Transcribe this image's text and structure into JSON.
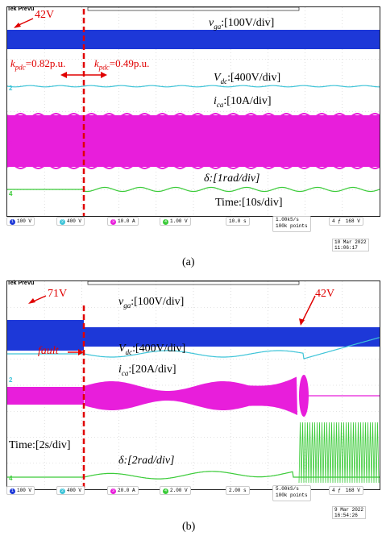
{
  "colors": {
    "ch1": "#1d38d8",
    "ch2": "#3ec4d8",
    "ch3": "#e81edb",
    "ch4": "#3bcb39",
    "red": "#e00000",
    "grid": "#c8c8c8"
  },
  "panel_a": {
    "brand": "Tek PreVu",
    "voltage_note": "42V",
    "kpdc_left": "k",
    "kpdc_left_sub": "pdc",
    "kpdc_left_val": "=0.82p.u.",
    "kpdc_right": "k",
    "kpdc_right_sub": "pdc",
    "kpdc_right_val": "=0.49p.u.",
    "lbl_vga": "v",
    "lbl_vga_sub": "ga",
    "lbl_vga_scale": ":[100V/div]",
    "lbl_vdc": "V",
    "lbl_vdc_sub": "dc",
    "lbl_vdc_scale": ":[400V/div]",
    "lbl_ica": "i",
    "lbl_ica_sub": "ca",
    "lbl_ica_scale": ":[10A/div]",
    "lbl_delta": "δ:[1rad/div]",
    "lbl_time": "Time:[10s/div]",
    "ch1": "100 V",
    "ch2": "400 V",
    "ch3": "10.0 A",
    "ch4": "1.00 V",
    "timebase": "10.0 s",
    "rate": "1.00kS/s",
    "points": "100k points",
    "trigger": "168 V",
    "date": "10 Mar 2022",
    "time": "11:06:17",
    "caption": "(a)"
  },
  "panel_b": {
    "brand": "Tek PreVu",
    "voltage_left": "71V",
    "voltage_right": "42V",
    "fault": "fault",
    "lbl_vga": "v",
    "lbl_vga_sub": "ga",
    "lbl_vga_scale": ":[100V/div]",
    "lbl_vdc": "V",
    "lbl_vdc_sub": "dc",
    "lbl_vdc_scale": ":[400V/div]",
    "lbl_ica": "i",
    "lbl_ica_sub": "ca",
    "lbl_ica_scale": ":[20A/div]",
    "lbl_delta": "δ:[2rad/div]",
    "lbl_time": "Time:[2s/div]",
    "ch1": "100 V",
    "ch2": "400 V",
    "ch3": "20.0 A",
    "ch4": "2.00 V",
    "timebase": "2.00 s",
    "rate": "5.00kS/s",
    "points": "100k points",
    "trigger": "168 V",
    "date": "9 Mar 2022",
    "time": "16:54:26",
    "caption": "(b)"
  }
}
